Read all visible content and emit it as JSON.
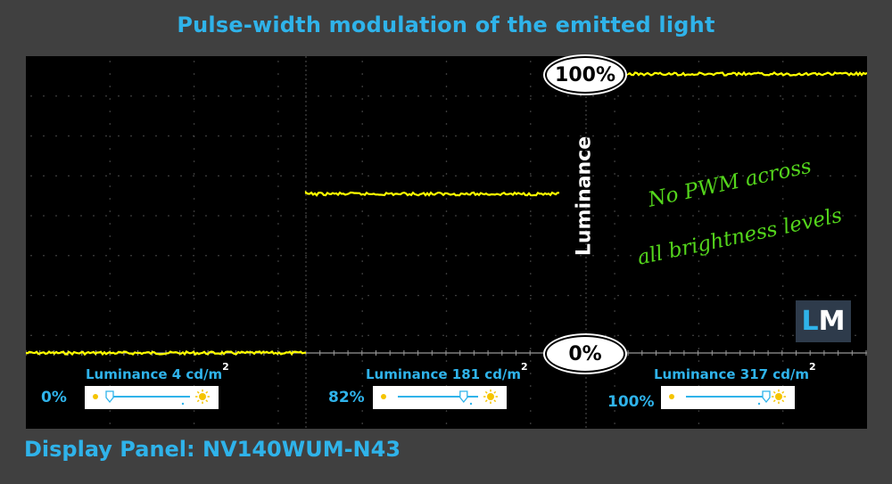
{
  "title": "Pulse-width modulation of the emitted light",
  "footer": "Display Panel: NV140WUM-N43",
  "axis_label": "Luminance",
  "label_top": "100%",
  "label_bottom": "0%",
  "annotation": {
    "line1": "No PWM across",
    "line2": "all brightness levels"
  },
  "logo": {
    "l": "L",
    "m": "M"
  },
  "colors": {
    "accent": "#2fb3ea",
    "trace": "#ffff00",
    "annotation": "#54d61c",
    "background": "#404040",
    "scope": "#000000"
  },
  "segments": [
    {
      "luminance_label": "Luminance 4 cd/m",
      "sup": "2",
      "brightness_label": "0%",
      "brightness": 0
    },
    {
      "luminance_label": "Luminance 181 cd/m",
      "sup": "2",
      "brightness_label": "82%",
      "brightness": 0.82
    },
    {
      "luminance_label": "Luminance 317 cd/m",
      "sup": "2",
      "brightness_label": "100%",
      "brightness": 1.0
    }
  ],
  "chart_data": {
    "type": "line",
    "title": "Pulse-width modulation of the emitted light",
    "ylabel": "Luminance",
    "ylim": [
      0,
      100
    ],
    "grid": true,
    "series": [
      {
        "name": "0%",
        "x": [
          0,
          1
        ],
        "values": [
          0,
          0
        ]
      },
      {
        "name": "82%",
        "x": [
          1,
          2
        ],
        "values": [
          57,
          57
        ]
      },
      {
        "name": "100%",
        "x": [
          2,
          3
        ],
        "values": [
          100,
          100
        ]
      }
    ]
  }
}
